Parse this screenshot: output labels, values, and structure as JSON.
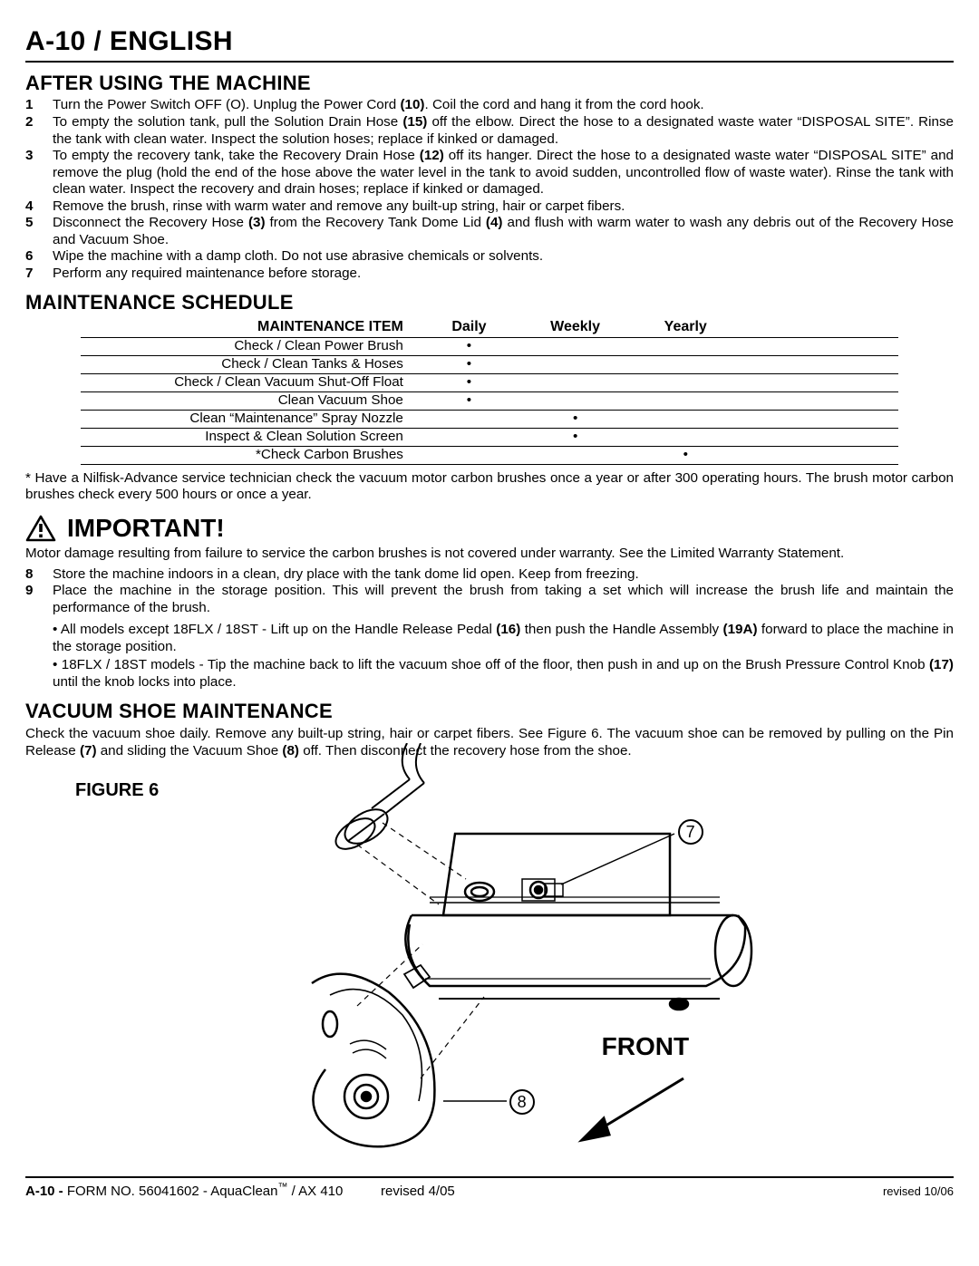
{
  "page_header": "A-10 / ENGLISH",
  "section1": {
    "title": "AFTER USING THE MACHINE",
    "items": [
      {
        "n": "1",
        "html": "Turn the Power Switch OFF (O).  Unplug the Power Cord <b class=\"inline\">(10)</b>.  Coil the cord and hang it from the cord hook."
      },
      {
        "n": "2",
        "html": "To empty the solution tank, pull the Solution Drain Hose <b class=\"inline\">(15)</b> off the elbow.  Direct the hose to a designated waste water “DISPOSAL SITE”.  Rinse the tank with clean water.  Inspect the solution hoses; replace if kinked or damaged."
      },
      {
        "n": "3",
        "html": "To empty the recovery tank, take the Recovery Drain Hose <b class=\"inline\">(12)</b> off its hanger.  Direct the hose to a designated waste water “DISPOSAL SITE” and remove the plug (hold the end of the hose above the water level in the tank to avoid sudden, uncontrolled flow of waste water).  Rinse the tank with clean water.  Inspect the recovery and drain hoses; replace if kinked or damaged."
      },
      {
        "n": "4",
        "html": "Remove the brush, rinse with warm water and remove any built-up string, hair or carpet fibers."
      },
      {
        "n": "5",
        "html": "Disconnect the Recovery Hose <b class=\"inline\">(3)</b> from the Recovery Tank Dome Lid <b class=\"inline\">(4)</b> and flush with warm water to wash any debris out of the Recovery Hose and Vacuum Shoe."
      },
      {
        "n": "6",
        "html": "Wipe the machine with a damp cloth.  Do not use abrasive chemicals or solvents."
      },
      {
        "n": "7",
        "html": "Perform any required maintenance before storage."
      }
    ]
  },
  "section2": {
    "title": "MAINTENANCE SCHEDULE",
    "table": {
      "headers": {
        "item": "MAINTENANCE ITEM",
        "daily": "Daily",
        "weekly": "Weekly",
        "yearly": "Yearly"
      },
      "rows": [
        {
          "item": "Check / Clean Power Brush",
          "daily": "•",
          "weekly": "",
          "yearly": ""
        },
        {
          "item": "Check / Clean Tanks & Hoses",
          "daily": "•",
          "weekly": "",
          "yearly": ""
        },
        {
          "item": "Check / Clean Vacuum Shut-Off Float",
          "daily": "•",
          "weekly": "",
          "yearly": ""
        },
        {
          "item": "Clean Vacuum Shoe",
          "daily": "•",
          "weekly": "",
          "yearly": ""
        },
        {
          "item": "Clean “Maintenance” Spray Nozzle",
          "daily": "",
          "weekly": "•",
          "yearly": ""
        },
        {
          "item": "Inspect & Clean Solution Screen",
          "daily": "",
          "weekly": "•",
          "yearly": ""
        },
        {
          "item": "*Check Carbon Brushes",
          "daily": "",
          "weekly": "",
          "yearly": "•"
        }
      ]
    },
    "footnote": "* Have a Nilfisk-Advance service technician check the vacuum motor carbon brushes once a year or after 300 operating hours.  The brush motor carbon brushes check every 500 hours or once a year."
  },
  "important": {
    "heading": "IMPORTANT!",
    "text": "Motor damage resulting from failure to service the carbon brushes is not covered under warranty.  See the Limited Warranty Statement.",
    "items": [
      {
        "n": "8",
        "html": "Store the machine indoors in a clean, dry place with the tank dome lid open.  Keep from freezing."
      },
      {
        "n": "9",
        "html": "Place the machine in the storage position.  This will prevent the brush from taking a set which will increase the brush life and maintain the performance of the brush."
      }
    ],
    "subbullets": [
      "• All models except 18FLX / 18ST - Lift up on the Handle Release Pedal <b class=\"inline\">(16)</b> then push the Handle Assembly <b class=\"inline\">(19A)</b> forward to place the machine in the storage position.",
      "• 18FLX / 18ST models - Tip the machine back to lift the vacuum shoe off of the floor, then push in and up on the Brush Pressure Control Knob <b class=\"inline\">(17)</b> until the knob locks into place."
    ]
  },
  "section3": {
    "title": "VACUUM SHOE MAINTENANCE",
    "text": "Check the vacuum shoe daily.  Remove any built-up string, hair or carpet fibers.  See Figure 6.  The vacuum shoe can be removed by pulling on the Pin Release <b class=\"inline\">(7)</b> and sliding the Vacuum Shoe <b class=\"inline\">(8)</b> off.  Then disconnect the recovery hose from the shoe."
  },
  "figure": {
    "label": "FIGURE 6",
    "callouts": {
      "c7": "7",
      "c8": "8"
    },
    "front": "FRONT"
  },
  "footer": {
    "left_prefix": "A-10 - ",
    "left_main": "FORM NO. 56041602 - AquaClean",
    "left_tm": "™",
    "left_suffix": " / AX 410",
    "mid": "revised 4/05",
    "right": "revised 10/06"
  }
}
